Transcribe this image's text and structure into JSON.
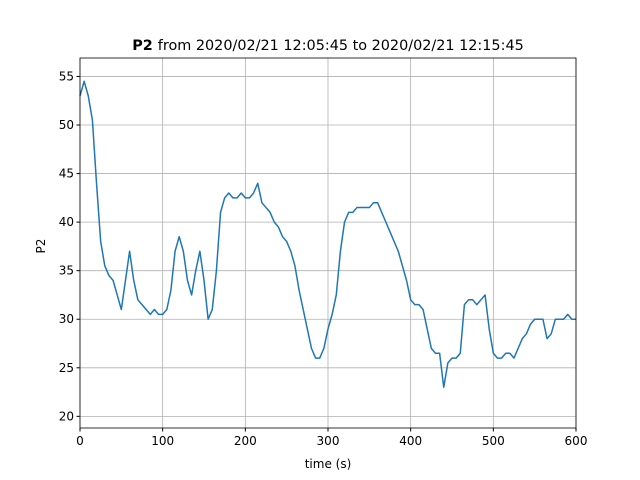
{
  "chart_data": {
    "type": "line",
    "title": {
      "bold": "P2",
      "rest": "from 2020/02/21 12:05:45 to 2020/02/21 12:15:45"
    },
    "xlabel": "time (s)",
    "ylabel": "P2",
    "x": [
      0,
      5,
      10,
      15,
      20,
      25,
      30,
      35,
      40,
      45,
      50,
      55,
      60,
      65,
      70,
      75,
      80,
      85,
      90,
      95,
      100,
      105,
      110,
      115,
      120,
      125,
      130,
      135,
      140,
      145,
      150,
      155,
      160,
      165,
      170,
      175,
      180,
      185,
      190,
      195,
      200,
      205,
      210,
      215,
      220,
      225,
      230,
      235,
      240,
      245,
      250,
      255,
      260,
      265,
      270,
      275,
      280,
      285,
      290,
      295,
      300,
      305,
      310,
      315,
      320,
      325,
      330,
      335,
      340,
      345,
      350,
      355,
      360,
      365,
      370,
      375,
      380,
      385,
      390,
      395,
      400,
      405,
      410,
      415,
      420,
      425,
      430,
      435,
      440,
      445,
      450,
      455,
      460,
      465,
      470,
      475,
      480,
      485,
      490,
      495,
      500,
      505,
      510,
      515,
      520,
      525,
      530,
      535,
      540,
      545,
      550,
      555,
      560,
      565,
      570,
      575,
      580,
      585,
      590,
      595,
      600
    ],
    "series": [
      {
        "name": "P2",
        "color": "#1f77b4",
        "values": [
          53,
          54.5,
          53,
          50.5,
          44,
          38,
          35.5,
          34.5,
          34,
          32.5,
          31,
          34,
          37,
          34,
          32,
          31.5,
          31,
          30.5,
          31,
          30.5,
          30.5,
          31,
          33,
          37,
          38.5,
          37,
          34,
          32.5,
          35,
          37,
          34,
          30,
          31,
          35,
          41,
          42.5,
          43,
          42.5,
          42.5,
          43,
          42.5,
          42.5,
          43,
          44,
          42,
          41.5,
          41,
          40,
          39.5,
          38.5,
          38,
          37,
          35.5,
          33,
          31,
          29,
          27,
          26,
          26,
          27,
          29,
          30.5,
          32.5,
          37,
          40,
          41,
          41,
          41.5,
          41.5,
          41.5,
          41.5,
          42,
          42,
          41,
          40,
          39,
          38,
          37,
          35.5,
          34,
          32,
          31.5,
          31.5,
          31,
          29,
          27,
          26.5,
          26.5,
          23,
          25.5,
          26,
          26,
          26.5,
          31.5,
          32,
          32,
          31.5,
          32,
          32.5,
          29,
          26.5,
          26,
          26,
          26.5,
          26.5,
          26,
          27,
          28,
          28.5,
          29.5,
          30,
          30,
          30,
          28,
          28.5,
          30,
          30,
          30,
          30.5,
          30,
          30
        ]
      }
    ],
    "xlim": [
      0,
      600
    ],
    "xticks": [
      0,
      100,
      200,
      300,
      400,
      500,
      600
    ],
    "ylim": [
      18.8,
      56.9
    ],
    "yticks": [
      20,
      25,
      30,
      35,
      40,
      45,
      50,
      55
    ],
    "grid": true
  }
}
